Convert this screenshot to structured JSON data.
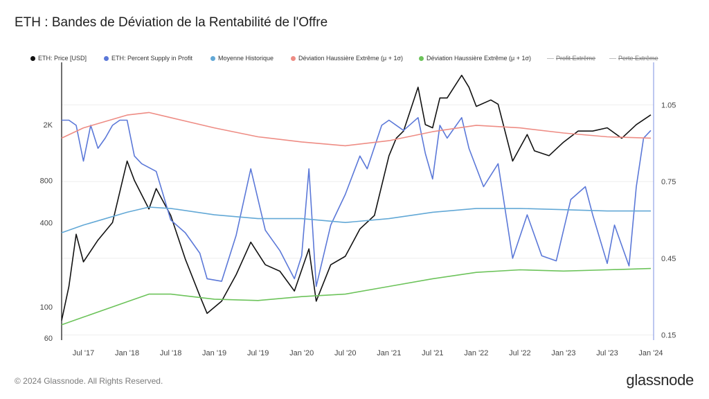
{
  "header": {
    "title": "ETH : Bandes de Déviation de la Rentabilité de l'Offre"
  },
  "legend": [
    {
      "label": "ETH: Price [USD]",
      "color": "#111111",
      "style": "dot"
    },
    {
      "label": "ETH: Percent Supply in Profit",
      "color": "#5b78d8",
      "style": "dot"
    },
    {
      "label": "Moyenne Historique",
      "color": "#62a8d6",
      "style": "dot"
    },
    {
      "label": "Déviation Haussière Extrême (μ + 1σ)",
      "color": "#ee8c84",
      "style": "dot"
    },
    {
      "label": "Déviation Haussière Extrême (μ + 1σ)",
      "color": "#6cc35a",
      "style": "dot"
    },
    {
      "label": "Profit Extrême",
      "color": "#bdbdbd",
      "style": "struck"
    },
    {
      "label": "Perte Extrême",
      "color": "#bdbdbd",
      "style": "struck"
    }
  ],
  "footer": {
    "copyright": "© 2024 Glassnode. All Rights Reserved.",
    "brand": "glassnode"
  },
  "chart_data": {
    "type": "line",
    "x_ticks": [
      "Jul '17",
      "Jan '18",
      "Jul '18",
      "Jan '19",
      "Jul '19",
      "Jan '20",
      "Jul '20",
      "Jan '21",
      "Jul '21",
      "Jan '22",
      "Jul '22",
      "Jan '23",
      "Jul '23",
      "Jan '24"
    ],
    "x_range": [
      "2017-04",
      "2024-01"
    ],
    "left_axis": {
      "scale": "log",
      "ticks": [
        "60",
        "100",
        "400",
        "800",
        "2K"
      ],
      "tick_values": [
        60,
        100,
        400,
        800,
        2000
      ],
      "range": [
        58,
        5200
      ]
    },
    "right_axis": {
      "scale": "linear",
      "ticks": [
        "0.15",
        "0.45",
        "0.75",
        "1.05"
      ],
      "tick_values": [
        0.15,
        0.45,
        0.75,
        1.05
      ],
      "range": [
        0.13,
        1.2
      ]
    },
    "series": [
      {
        "name": "ETH: Price [USD]",
        "axis": "left",
        "color": "#111111",
        "x": [
          "2017-04",
          "2017-05",
          "2017-06",
          "2017-07",
          "2017-09",
          "2017-11",
          "2018-01",
          "2018-02",
          "2018-04",
          "2018-05",
          "2018-07",
          "2018-09",
          "2018-11",
          "2018-12",
          "2019-02",
          "2019-04",
          "2019-06",
          "2019-08",
          "2019-10",
          "2019-12",
          "2020-02",
          "2020-03",
          "2020-05",
          "2020-07",
          "2020-09",
          "2020-11",
          "2021-01",
          "2021-02",
          "2021-03",
          "2021-05",
          "2021-06",
          "2021-07",
          "2021-08",
          "2021-09",
          "2021-11",
          "2021-12",
          "2022-01",
          "2022-03",
          "2022-04",
          "2022-06",
          "2022-08",
          "2022-09",
          "2022-11",
          "2023-01",
          "2023-03",
          "2023-05",
          "2023-07",
          "2023-09",
          "2023-11",
          "2024-01"
        ],
        "y": [
          80,
          140,
          330,
          210,
          300,
          400,
          1100,
          800,
          500,
          700,
          450,
          220,
          120,
          90,
          110,
          170,
          290,
          200,
          180,
          130,
          260,
          110,
          200,
          230,
          360,
          450,
          1200,
          1600,
          1800,
          3700,
          2000,
          1900,
          3100,
          3100,
          4500,
          3700,
          2700,
          3000,
          2800,
          1100,
          1700,
          1300,
          1200,
          1500,
          1800,
          1800,
          1900,
          1600,
          2000,
          2350
        ]
      },
      {
        "name": "ETH: Percent Supply in Profit",
        "axis": "right",
        "color": "#5b78d8",
        "x": [
          "2017-04",
          "2017-05",
          "2017-06",
          "2017-07",
          "2017-08",
          "2017-09",
          "2017-10",
          "2017-11",
          "2017-12",
          "2018-01",
          "2018-02",
          "2018-03",
          "2018-05",
          "2018-07",
          "2018-09",
          "2018-11",
          "2018-12",
          "2019-02",
          "2019-04",
          "2019-06",
          "2019-08",
          "2019-10",
          "2019-12",
          "2020-01",
          "2020-02",
          "2020-03",
          "2020-05",
          "2020-07",
          "2020-09",
          "2020-10",
          "2020-12",
          "2021-01",
          "2021-03",
          "2021-05",
          "2021-06",
          "2021-07",
          "2021-08",
          "2021-09",
          "2021-11",
          "2021-12",
          "2022-02",
          "2022-04",
          "2022-06",
          "2022-08",
          "2022-10",
          "2022-12",
          "2023-02",
          "2023-04",
          "2023-05",
          "2023-07",
          "2023-08",
          "2023-10",
          "2023-11",
          "2023-12",
          "2024-01"
        ],
        "y": [
          0.99,
          0.99,
          0.97,
          0.83,
          0.97,
          0.88,
          0.92,
          0.97,
          0.99,
          0.99,
          0.85,
          0.82,
          0.79,
          0.6,
          0.55,
          0.47,
          0.37,
          0.36,
          0.54,
          0.8,
          0.56,
          0.48,
          0.37,
          0.46,
          0.8,
          0.34,
          0.58,
          0.7,
          0.85,
          0.8,
          0.97,
          0.99,
          0.95,
          1.0,
          0.86,
          0.76,
          0.97,
          0.92,
          1.0,
          0.88,
          0.73,
          0.82,
          0.45,
          0.62,
          0.46,
          0.44,
          0.68,
          0.73,
          0.62,
          0.43,
          0.58,
          0.42,
          0.73,
          0.92,
          0.95
        ]
      },
      {
        "name": "Moyenne Historique",
        "axis": "right",
        "color": "#62a8d6",
        "x": [
          "2017-04",
          "2017-07",
          "2018-01",
          "2018-04",
          "2018-07",
          "2019-01",
          "2019-07",
          "2020-01",
          "2020-07",
          "2021-01",
          "2021-07",
          "2022-01",
          "2022-07",
          "2023-01",
          "2023-07",
          "2024-01"
        ],
        "y": [
          0.55,
          0.58,
          0.63,
          0.65,
          0.645,
          0.62,
          0.605,
          0.605,
          0.59,
          0.605,
          0.63,
          0.645,
          0.645,
          0.64,
          0.635,
          0.635
        ]
      },
      {
        "name": "Déviation Haussière Extrême (μ + 1σ)",
        "axis": "right",
        "color": "#ee8c84",
        "x": [
          "2017-04",
          "2017-07",
          "2018-01",
          "2018-04",
          "2018-07",
          "2019-01",
          "2019-07",
          "2020-01",
          "2020-07",
          "2021-01",
          "2021-07",
          "2022-01",
          "2022-07",
          "2023-01",
          "2023-07",
          "2024-01"
        ],
        "y": [
          0.92,
          0.96,
          1.01,
          1.02,
          1.0,
          0.96,
          0.925,
          0.905,
          0.89,
          0.91,
          0.945,
          0.97,
          0.96,
          0.94,
          0.925,
          0.92
        ]
      },
      {
        "name": "Déviation Haussière Extrême (μ + 1σ)",
        "axis": "right",
        "color": "#6cc35a",
        "x": [
          "2017-04",
          "2017-07",
          "2018-01",
          "2018-04",
          "2018-07",
          "2019-01",
          "2019-07",
          "2020-01",
          "2020-07",
          "2021-01",
          "2021-07",
          "2022-01",
          "2022-07",
          "2023-01",
          "2023-07",
          "2024-01"
        ],
        "y": [
          0.19,
          0.22,
          0.28,
          0.31,
          0.31,
          0.29,
          0.285,
          0.3,
          0.31,
          0.34,
          0.37,
          0.395,
          0.405,
          0.4,
          0.405,
          0.41
        ]
      }
    ],
    "grid": true,
    "legend_position": "top"
  }
}
